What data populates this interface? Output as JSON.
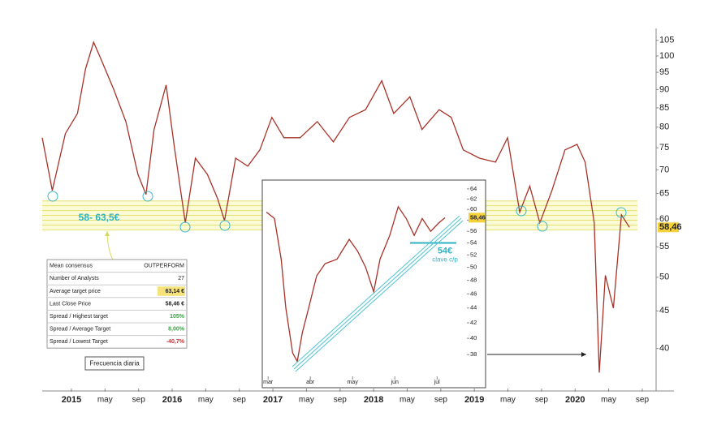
{
  "chart_data": [
    {
      "type": "line",
      "color": "#a83228",
      "x": [
        2014.71,
        2014.81,
        2014.94,
        2015.06,
        2015.14,
        2015.22,
        2015.3,
        2015.42,
        2015.54,
        2015.66,
        2015.74,
        2015.82,
        2015.94,
        2016.02,
        2016.13,
        2016.23,
        2016.35,
        2016.45,
        2016.52,
        2016.63,
        2016.75,
        2016.87,
        2016.99,
        2017.11,
        2017.27,
        2017.44,
        2017.6,
        2017.76,
        2017.92,
        2018.08,
        2018.2,
        2018.36,
        2018.48,
        2018.65,
        2018.77,
        2018.89,
        2019.05,
        2019.21,
        2019.33,
        2019.45,
        2019.55,
        2019.65,
        2019.77,
        2019.9,
        2020.02,
        2020.1,
        2020.19,
        2020.24,
        2020.3,
        2020.38,
        2020.46,
        2020.54
      ],
      "values": [
        77.4,
        65.6,
        78.4,
        83.5,
        96,
        104.4,
        98.5,
        90,
        81.4,
        69,
        64.8,
        79.4,
        91.3,
        75.5,
        59.3,
        72.6,
        69,
        64,
        59.7,
        72.6,
        70.8,
        74.5,
        82.5,
        77.4,
        77.4,
        81.4,
        76.4,
        82.5,
        84.5,
        92.5,
        83.5,
        88,
        79.4,
        84.5,
        82.5,
        74.5,
        72.6,
        71.7,
        77.4,
        61.3,
        66.5,
        59.3,
        65.6,
        74.5,
        75.8,
        71.7,
        59.3,
        37.1,
        50.3,
        45.4,
        60.8,
        58.46
      ],
      "log_scale": true,
      "xlim": [
        2014.71,
        2020.78
      ],
      "xticks": [
        2015,
        {
          "value": 2015.333,
          "label": "may"
        },
        {
          "value": 2015.667,
          "label": "sep"
        },
        2016,
        {
          "value": 2016.333,
          "label": "may"
        },
        {
          "value": 2016.667,
          "label": "sep"
        },
        2017,
        {
          "value": 2017.333,
          "label": "may"
        },
        {
          "value": 2017.667,
          "label": "sep"
        },
        2018,
        {
          "value": 2018.333,
          "label": "may"
        },
        {
          "value": 2018.667,
          "label": "sep"
        },
        2019,
        {
          "value": 2019.333,
          "label": "may"
        },
        {
          "value": 2019.667,
          "label": "sep"
        },
        2020,
        {
          "value": 2020.333,
          "label": "may"
        },
        {
          "value": 2020.667,
          "label": "sep"
        }
      ],
      "ylim": [
        35.2,
        109
      ],
      "yticks": [
        105,
        100,
        95,
        90,
        85,
        80,
        75,
        70,
        65,
        60,
        55,
        50,
        45,
        40
      ],
      "last_label": {
        "value": 58.46,
        "label": "58,46"
      },
      "zone": {
        "low": 58,
        "high": 63.5,
        "label": "58- 63,5€"
      }
    },
    {
      "type": "line",
      "color": "#a83228",
      "x": [
        2.96,
        3.15,
        3.31,
        3.42,
        3.58,
        3.69,
        3.81,
        3.96,
        4.15,
        4.35,
        4.63,
        4.92,
        5.12,
        5.31,
        5.5,
        5.65,
        5.88,
        6.08,
        6.27,
        6.46,
        6.65,
        6.85,
        7.04,
        7.19
      ],
      "values": [
        59.5,
        58.3,
        51.3,
        44,
        38.2,
        37.2,
        40.7,
        44,
        48.7,
        50.6,
        51.3,
        54.6,
        52.6,
        50,
        46.3,
        51.3,
        55.3,
        60.5,
        58.3,
        55.3,
        58.3,
        56,
        57.5,
        58.46
      ],
      "log_scale": true,
      "xlim": [
        2.9,
        8.13
      ],
      "xticks": [
        {
          "value": 3,
          "label": "mar"
        },
        {
          "value": 4,
          "label": "abr"
        },
        {
          "value": 5,
          "label": "may"
        },
        {
          "value": 6,
          "label": "jun"
        },
        {
          "value": 7,
          "label": "jul"
        }
      ],
      "ylim": [
        35.4,
        65.3
      ],
      "yticks": [
        64,
        62,
        60,
        58,
        56,
        54,
        52,
        50,
        48,
        46,
        44,
        42,
        40,
        38
      ],
      "last_label": {
        "value": 58.46,
        "label": "58,46"
      },
      "level": {
        "value": 54,
        "label": "54€",
        "note": "clave c/p"
      }
    }
  ],
  "consensus_table": {
    "rows": [
      [
        "Mean consensus",
        "OUTPERFORM"
      ],
      [
        "Number of Analysts",
        "27"
      ],
      [
        "Average target price",
        "63,14 €"
      ],
      [
        "Last Close Price",
        "58,46 €"
      ],
      [
        "Spread / Highest target",
        "105%"
      ],
      [
        "Spread / Average Target",
        "8,00%"
      ],
      [
        "Spread / Lowest Target",
        "-40,7%"
      ]
    ]
  },
  "button": "Frecuencia diaria"
}
